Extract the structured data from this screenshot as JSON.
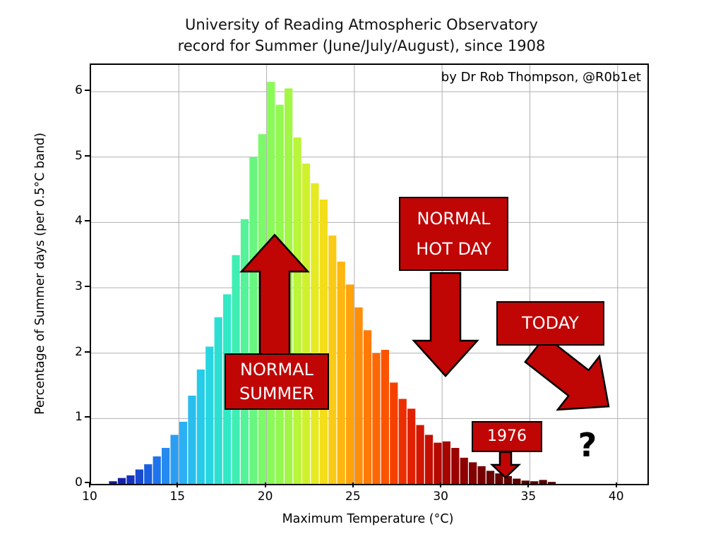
{
  "title": {
    "line1": "University of Reading Atmospheric Observatory",
    "line2": "record for Summer (June/July/August), since 1908"
  },
  "attribution": "by Dr Rob Thompson, @R0b1et",
  "axes": {
    "xlabel": "Maximum Temperature (°C)",
    "ylabel": "Percentage of Summer days (per 0.5°C band)",
    "x_ticks": [
      10,
      15,
      20,
      25,
      30,
      35,
      40
    ],
    "y_ticks": [
      0,
      1,
      2,
      3,
      4,
      5,
      6
    ]
  },
  "annotations": {
    "normal_summer": {
      "line1": "NORMAL",
      "line2": "SUMMER"
    },
    "normal_hot_day": {
      "line1": "NORMAL",
      "line2": "HOT DAY"
    },
    "today": {
      "label": "TODAY"
    },
    "y1976": {
      "label": "1976"
    },
    "question": "?"
  },
  "colors": {
    "annotation_red": "#c00505",
    "grid": "#b0b0b0",
    "axis": "#000000",
    "background": "#ffffff"
  },
  "chart_data": {
    "type": "bar",
    "title": "University of Reading Atmospheric Observatory record for Summer (June/July/August), since 1908",
    "xlabel": "Maximum Temperature (°C)",
    "ylabel": "Percentage of Summer days (per 0.5°C band)",
    "xlim": [
      10,
      41.7
    ],
    "ylim": [
      0,
      6.41
    ],
    "grid": true,
    "bin_width": 0.5,
    "x_left": [
      11.0,
      11.5,
      12.0,
      12.5,
      13.0,
      13.5,
      14.0,
      14.5,
      15.0,
      15.5,
      16.0,
      16.5,
      17.0,
      17.5,
      18.0,
      18.5,
      19.0,
      19.5,
      20.0,
      20.5,
      21.0,
      21.5,
      22.0,
      22.5,
      23.0,
      23.5,
      24.0,
      24.5,
      25.0,
      25.5,
      26.0,
      26.5,
      27.0,
      27.5,
      28.0,
      28.5,
      29.0,
      29.5,
      30.0,
      30.5,
      31.0,
      31.5,
      32.0,
      32.5,
      33.0,
      33.5,
      34.0,
      34.5,
      35.0,
      35.5,
      36.0
    ],
    "values": [
      0.04,
      0.09,
      0.13,
      0.22,
      0.3,
      0.42,
      0.55,
      0.75,
      0.95,
      1.35,
      1.75,
      2.1,
      2.55,
      2.9,
      3.5,
      4.05,
      5.0,
      5.35,
      6.15,
      5.8,
      6.05,
      5.3,
      4.9,
      4.6,
      4.35,
      3.8,
      3.4,
      3.05,
      2.7,
      2.35,
      2.0,
      2.05,
      1.55,
      1.3,
      1.15,
      0.9,
      0.75,
      0.63,
      0.65,
      0.55,
      0.4,
      0.33,
      0.27,
      0.2,
      0.16,
      0.12,
      0.08,
      0.05,
      0.04,
      0.06,
      0.03
    ],
    "colormap": [
      [
        11.0,
        "#14147a"
      ],
      [
        12.0,
        "#1527b4"
      ],
      [
        13.5,
        "#1b6ae8"
      ],
      [
        15.0,
        "#2ea8f5"
      ],
      [
        16.5,
        "#25d2e8"
      ],
      [
        18.0,
        "#35ecbe"
      ],
      [
        19.0,
        "#5ef58c"
      ],
      [
        20.0,
        "#86fa5c"
      ],
      [
        21.0,
        "#96f84a"
      ],
      [
        22.0,
        "#c4f432"
      ],
      [
        23.0,
        "#f0e71e"
      ],
      [
        24.0,
        "#fdc113"
      ],
      [
        25.0,
        "#ff980a"
      ],
      [
        26.0,
        "#ff7005"
      ],
      [
        27.0,
        "#fa4a00"
      ],
      [
        28.0,
        "#e62600"
      ],
      [
        29.0,
        "#cc1000"
      ],
      [
        30.0,
        "#ad0600"
      ],
      [
        31.5,
        "#870000"
      ],
      [
        33.0,
        "#650000"
      ],
      [
        36.5,
        "#4d0000"
      ]
    ]
  }
}
